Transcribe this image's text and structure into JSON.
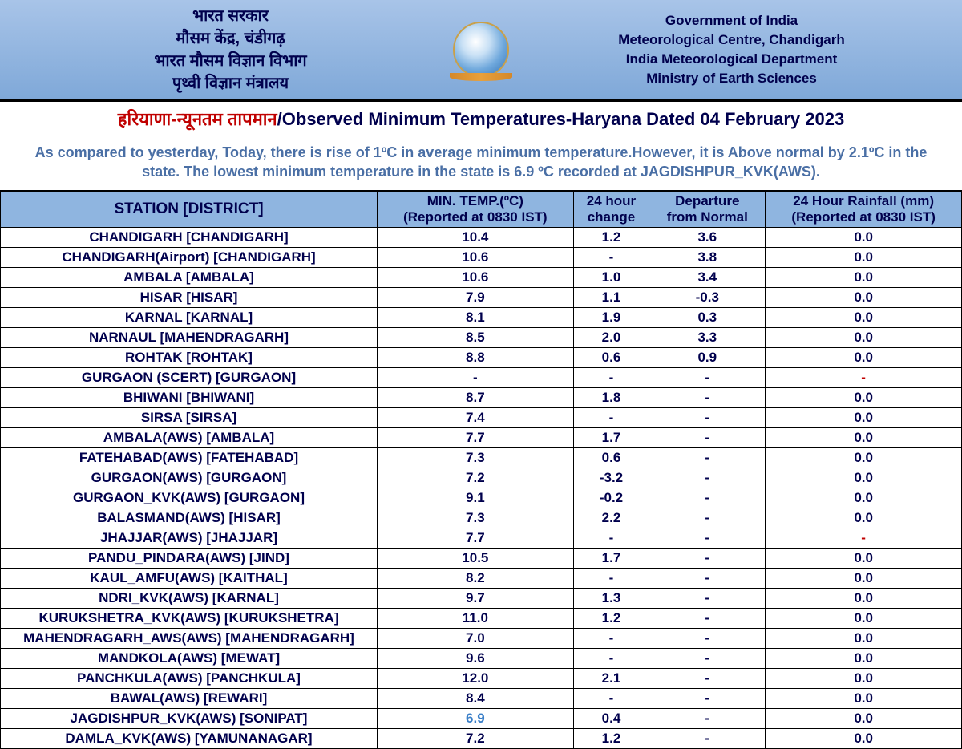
{
  "colors": {
    "header_gradient_top": "#a8c4e8",
    "header_gradient_bottom": "#7fa8d8",
    "text_dark_blue": "#00004d",
    "text_red": "#c00000",
    "summary_blue": "#4a6fa5",
    "table_header_bg": "#8fb5e0",
    "highlight_blue": "#3a7fc8",
    "border": "#000000"
  },
  "typography": {
    "header_fontsize": 18,
    "title_fontsize": 22,
    "summary_fontsize": 18,
    "table_fontsize": 17,
    "weight": "bold"
  },
  "header": {
    "left": {
      "l1": "भारत सरकार",
      "l2": "मौसम केंद्र, चंडीगढ़",
      "l3": "भारत मौसम विज्ञान विभाग",
      "l4": "पृथ्वी विज्ञान मंत्रालय"
    },
    "right": {
      "l1": "Government of India",
      "l2": "Meteorological Centre, Chandigarh",
      "l3": "India Meteorological Department",
      "l4": "Ministry of Earth Sciences"
    }
  },
  "title": {
    "hindi": "हरियाणा-न्यूनतम तापमान",
    "sep": "/",
    "english": "Observed Minimum Temperatures-Haryana Dated 04 February 2023"
  },
  "summary": "As compared to yesterday, Today, there is rise of 1ºC in average minimum temperature.However, it is Above normal by 2.1ºC in the state. The lowest minimum temperature in the state is 6.9 ºC recorded at JAGDISHPUR_KVK(AWS).",
  "table": {
    "columns": [
      {
        "line1": "STATION  [DISTRICT]"
      },
      {
        "line1": "MIN. TEMP.(ºC)",
        "line2": "(Reported at 0830 IST)"
      },
      {
        "line1": "24 hour",
        "line2": "change"
      },
      {
        "line1": "Departure",
        "line2": "from Normal"
      },
      {
        "line1": "24 Hour Rainfall (mm)",
        "line2": "(Reported at 0830 IST)"
      }
    ],
    "rows": [
      {
        "station": "CHANDIGARH  [CHANDIGARH]",
        "temp": "10.4",
        "change": "1.2",
        "dep": "3.6",
        "rain": "0.0"
      },
      {
        "station": "CHANDIGARH(Airport)  [CHANDIGARH]",
        "temp": "10.6",
        "change": "-",
        "dep": "3.8",
        "rain": "0.0"
      },
      {
        "station": "AMBALA  [AMBALA]",
        "temp": "10.6",
        "change": "1.0",
        "dep": "3.4",
        "rain": "0.0"
      },
      {
        "station": "HISAR  [HISAR]",
        "temp": "7.9",
        "change": "1.1",
        "dep": "-0.3",
        "rain": "0.0"
      },
      {
        "station": "KARNAL  [KARNAL]",
        "temp": "8.1",
        "change": "1.9",
        "dep": "0.3",
        "rain": "0.0"
      },
      {
        "station": "NARNAUL  [MAHENDRAGARH]",
        "temp": "8.5",
        "change": "2.0",
        "dep": "3.3",
        "rain": "0.0"
      },
      {
        "station": "ROHTAK  [ROHTAK]",
        "temp": "8.8",
        "change": "0.6",
        "dep": "0.9",
        "rain": "0.0"
      },
      {
        "station": "GURGAON (SCERT)  [GURGAON]",
        "temp": "-",
        "change": "-",
        "dep": "-",
        "rain": "-",
        "rain_red": true
      },
      {
        "station": "BHIWANI  [BHIWANI]",
        "temp": "8.7",
        "change": "1.8",
        "dep": "-",
        "rain": "0.0"
      },
      {
        "station": "SIRSA  [SIRSA]",
        "temp": "7.4",
        "change": "-",
        "dep": "-",
        "rain": "0.0"
      },
      {
        "station": "AMBALA(AWS)  [AMBALA]",
        "temp": "7.7",
        "change": "1.7",
        "dep": "-",
        "rain": "0.0"
      },
      {
        "station": "FATEHABAD(AWS)  [FATEHABAD]",
        "temp": "7.3",
        "change": "0.6",
        "dep": "-",
        "rain": "0.0"
      },
      {
        "station": "GURGAON(AWS)  [GURGAON]",
        "temp": "7.2",
        "change": "-3.2",
        "dep": "-",
        "rain": "0.0"
      },
      {
        "station": "GURGAON_KVK(AWS)  [GURGAON]",
        "temp": "9.1",
        "change": "-0.2",
        "dep": "-",
        "rain": "0.0"
      },
      {
        "station": "BALASMAND(AWS)  [HISAR]",
        "temp": "7.3",
        "change": "2.2",
        "dep": "-",
        "rain": "0.0"
      },
      {
        "station": "JHAJJAR(AWS)  [JHAJJAR]",
        "temp": "7.7",
        "change": "-",
        "dep": "-",
        "rain": "-",
        "rain_red": true
      },
      {
        "station": "PANDU_PINDARA(AWS)  [JIND]",
        "temp": "10.5",
        "change": "1.7",
        "dep": "-",
        "rain": "0.0"
      },
      {
        "station": "KAUL_AMFU(AWS)  [KAITHAL]",
        "temp": "8.2",
        "change": "-",
        "dep": "-",
        "rain": "0.0"
      },
      {
        "station": "NDRI_KVK(AWS)  [KARNAL]",
        "temp": "9.7",
        "change": "1.3",
        "dep": "-",
        "rain": "0.0"
      },
      {
        "station": "KURUKSHETRA_KVK(AWS)  [KURUKSHETRA]",
        "temp": "11.0",
        "change": "1.2",
        "dep": "-",
        "rain": "0.0"
      },
      {
        "station": "MAHENDRAGARH_AWS(AWS)  [MAHENDRAGARH]",
        "temp": "7.0",
        "change": "-",
        "dep": "-",
        "rain": "0.0"
      },
      {
        "station": "MANDKOLA(AWS)  [MEWAT]",
        "temp": "9.6",
        "change": "-",
        "dep": "-",
        "rain": "0.0"
      },
      {
        "station": "PANCHKULA(AWS)  [PANCHKULA]",
        "temp": "12.0",
        "change": "2.1",
        "dep": "-",
        "rain": "0.0"
      },
      {
        "station": "BAWAL(AWS)  [REWARI]",
        "temp": "8.4",
        "change": "-",
        "dep": "-",
        "rain": "0.0"
      },
      {
        "station": "JAGDISHPUR_KVK(AWS)  [SONIPAT]",
        "temp": "6.9",
        "temp_highlight": true,
        "change": "0.4",
        "dep": "-",
        "rain": "0.0"
      },
      {
        "station": "DAMLA_KVK(AWS)  [YAMUNANAGAR]",
        "temp": "7.2",
        "change": "1.2",
        "dep": "-",
        "rain": "0.0"
      }
    ]
  }
}
